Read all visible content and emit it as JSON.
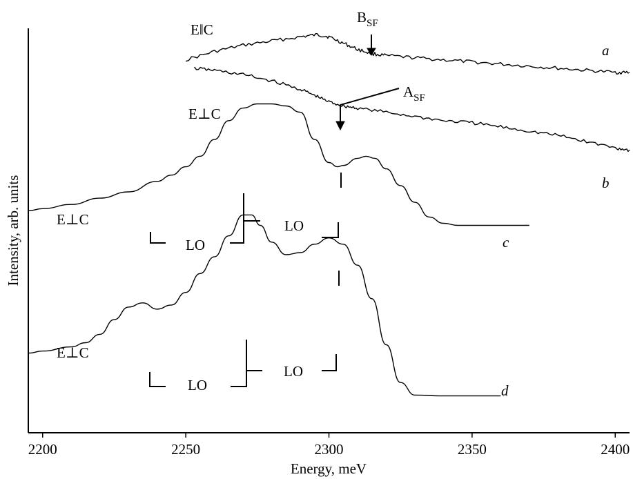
{
  "chart_data": {
    "type": "line",
    "xlabel": "Energy, meV",
    "ylabel": "Intensity, arb. units",
    "xlim": [
      2195,
      2405
    ],
    "xticks": [
      2200,
      2250,
      2300,
      2350,
      2400
    ],
    "y_scale": "arbitrary (curves vertically offset)",
    "grid": false,
    "series": [
      {
        "name": "a",
        "polarization": "E||C",
        "x": [
          2250,
          2260,
          2270,
          2280,
          2290,
          2296,
          2300,
          2305,
          2310,
          2315,
          2320,
          2330,
          2340,
          2350,
          2360,
          2370,
          2380,
          2390,
          2400,
          2405
        ],
        "y": [
          0.89,
          0.91,
          0.925,
          0.935,
          0.945,
          0.95,
          0.945,
          0.93,
          0.915,
          0.905,
          0.9,
          0.895,
          0.89,
          0.885,
          0.88,
          0.875,
          0.87,
          0.865,
          0.86,
          0.86
        ]
      },
      {
        "name": "b",
        "polarization": "E⊥C",
        "x": [
          2253,
          2260,
          2270,
          2280,
          2290,
          2295,
          2300,
          2305,
          2310,
          2320,
          2330,
          2340,
          2350,
          2360,
          2370,
          2380,
          2390,
          2400,
          2405
        ],
        "y": [
          0.87,
          0.865,
          0.855,
          0.84,
          0.82,
          0.805,
          0.79,
          0.78,
          0.775,
          0.765,
          0.755,
          0.745,
          0.74,
          0.73,
          0.72,
          0.71,
          0.695,
          0.68,
          0.675
        ]
      },
      {
        "name": "c",
        "polarization": "E⊥C",
        "x": [
          2195,
          2200,
          2210,
          2220,
          2230,
          2240,
          2245,
          2250,
          2255,
          2260,
          2265,
          2270,
          2275,
          2280,
          2285,
          2290,
          2295,
          2300,
          2303,
          2305,
          2310,
          2313,
          2316,
          2320,
          2325,
          2330,
          2335,
          2340,
          2345,
          2350,
          2360,
          2370
        ],
        "y": [
          0.53,
          0.535,
          0.545,
          0.56,
          0.575,
          0.6,
          0.615,
          0.635,
          0.66,
          0.7,
          0.745,
          0.775,
          0.785,
          0.785,
          0.78,
          0.765,
          0.7,
          0.645,
          0.635,
          0.638,
          0.655,
          0.66,
          0.655,
          0.63,
          0.59,
          0.55,
          0.515,
          0.5,
          0.495,
          0.495,
          0.495,
          0.495
        ]
      },
      {
        "name": "d",
        "polarization": "E⊥C",
        "x": [
          2195,
          2200,
          2210,
          2215,
          2220,
          2225,
          2230,
          2235,
          2240,
          2245,
          2250,
          2255,
          2260,
          2265,
          2270,
          2273,
          2276,
          2280,
          2285,
          2290,
          2295,
          2300,
          2305,
          2310,
          2315,
          2320,
          2325,
          2330,
          2340,
          2350,
          2360
        ],
        "y": [
          0.19,
          0.195,
          0.205,
          0.215,
          0.235,
          0.27,
          0.3,
          0.31,
          0.295,
          0.305,
          0.335,
          0.38,
          0.42,
          0.47,
          0.52,
          0.52,
          0.495,
          0.455,
          0.425,
          0.43,
          0.45,
          0.465,
          0.45,
          0.4,
          0.32,
          0.21,
          0.12,
          0.09,
          0.088,
          0.088,
          0.088
        ]
      }
    ],
    "annotations": [
      {
        "text_main": "B",
        "text_sub": "SF",
        "arrow_to_x": 2314,
        "curve": "a"
      },
      {
        "text_main": "A",
        "text_sub": "SF",
        "arrow_to_x": 2304,
        "curve": "b"
      },
      {
        "text": "LO",
        "curve": "c",
        "bracket": "left"
      },
      {
        "text": "LO",
        "curve": "c",
        "bracket": "right"
      },
      {
        "text": "LO",
        "curve": "d",
        "bracket": "left"
      },
      {
        "text": "LO",
        "curve": "d",
        "bracket": "right"
      }
    ],
    "curve_labels": [
      {
        "text": "E‖C",
        "curve": "a"
      },
      {
        "text": "E⊥C",
        "curve": "b"
      },
      {
        "text": "E⊥C",
        "curve": "c"
      },
      {
        "text": "E⊥C",
        "curve": "d"
      }
    ]
  }
}
